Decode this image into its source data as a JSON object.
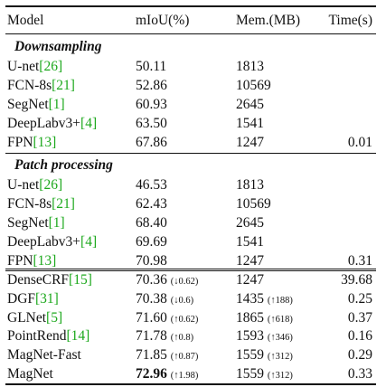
{
  "header": {
    "model": "Model",
    "miou": "mIoU(%)",
    "mem": "Mem.(MB)",
    "time": "Time(s)"
  },
  "sections": {
    "downsampling": "Downsampling",
    "patch": "Patch processing"
  },
  "downsampling_rows": [
    {
      "name": "U-net",
      "cite": "[26]",
      "miou": "50.11",
      "mem": "1813",
      "time": ""
    },
    {
      "name": "FCN-8s",
      "cite": "[21]",
      "miou": "52.86",
      "mem": "10569",
      "time": ""
    },
    {
      "name": "SegNet",
      "cite": "[1]",
      "miou": "60.93",
      "mem": "2645",
      "time": ""
    },
    {
      "name": "DeepLabv3+",
      "cite": "[4]",
      "miou": "63.50",
      "mem": "1541",
      "time": ""
    },
    {
      "name": "FPN",
      "cite": "[13]",
      "miou": "67.86",
      "mem": "1247",
      "time": "0.01"
    }
  ],
  "patch_rows": [
    {
      "name": "U-net",
      "cite": "[26]",
      "miou": "46.53",
      "mem": "1813",
      "time": ""
    },
    {
      "name": "FCN-8s",
      "cite": "[21]",
      "miou": "62.43",
      "mem": "10569",
      "time": ""
    },
    {
      "name": "SegNet",
      "cite": "[1]",
      "miou": "68.40",
      "mem": "2645",
      "time": ""
    },
    {
      "name": "DeepLabv3+",
      "cite": "[4]",
      "miou": "69.69",
      "mem": "1541",
      "time": ""
    },
    {
      "name": "FPN",
      "cite": "[13]",
      "miou": "70.98",
      "mem": "1247",
      "time": "0.31"
    }
  ],
  "refine_rows": [
    {
      "name": "DenseCRF",
      "cite": "[15]",
      "miou": "70.36",
      "miou_delta": "(↓0.62)",
      "mem": "1247",
      "mem_delta": "",
      "time": "39.68",
      "bold": false
    },
    {
      "name": "DGF",
      "cite": "[31]",
      "miou": "70.38",
      "miou_delta": "(↓0.6)",
      "mem": "1435",
      "mem_delta": "(↑188)",
      "time": "0.25",
      "bold": false
    },
    {
      "name": "GLNet",
      "cite": "[5]",
      "miou": "71.60",
      "miou_delta": "(↑0.62)",
      "mem": "1865",
      "mem_delta": "(↑618)",
      "time": "0.37",
      "bold": false
    },
    {
      "name": "PointRend",
      "cite": "[14]",
      "miou": "71.78",
      "miou_delta": "(↑0.8)",
      "mem": "1593",
      "mem_delta": "(↑346)",
      "time": "0.16",
      "bold": false
    },
    {
      "name": "MagNet-Fast",
      "cite": "",
      "miou": "71.85",
      "miou_delta": "(↑0.87)",
      "mem": "1559",
      "mem_delta": "(↑312)",
      "time": "0.29",
      "bold": false
    },
    {
      "name": "MagNet",
      "cite": "",
      "miou": "72.96",
      "miou_delta": "(↑1.98)",
      "mem": "1559",
      "mem_delta": "(↑312)",
      "time": "0.33",
      "bold": true
    }
  ]
}
